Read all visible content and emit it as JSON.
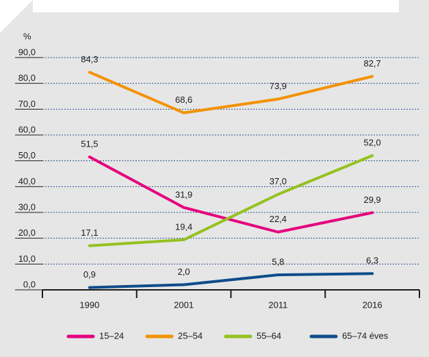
{
  "chart_data": {
    "type": "line",
    "y_label": "%",
    "categories": [
      "1990",
      "2001",
      "2011",
      "2016"
    ],
    "series": [
      {
        "name": "15–24",
        "color": "#e5007d",
        "values": [
          51.5,
          31.9,
          22.4,
          29.9
        ],
        "value_labels": [
          "51,5",
          "31,9",
          "22,4",
          "29,9"
        ]
      },
      {
        "name": "25–54",
        "color": "#f39200",
        "values": [
          84.3,
          68.6,
          73.9,
          82.7
        ],
        "value_labels": [
          "84,3",
          "68,6",
          "73,9",
          "82,7"
        ]
      },
      {
        "name": "55–64",
        "color": "#95c11f",
        "values": [
          17.1,
          19.4,
          37.0,
          52.0
        ],
        "value_labels": [
          "17,1",
          "19,4",
          "37,0",
          "52,0"
        ]
      },
      {
        "name": "65–74 éves",
        "color": "#0f4c8a",
        "values": [
          0.9,
          2.0,
          5.8,
          6.3
        ],
        "value_labels": [
          "0,9",
          "2,0",
          "5,8",
          "6,3"
        ]
      }
    ],
    "ylim": [
      0,
      90
    ],
    "yticks": [
      {
        "value": 0,
        "label": "0,0"
      },
      {
        "value": 10,
        "label": "10,0"
      },
      {
        "value": 20,
        "label": "20,0"
      },
      {
        "value": 30,
        "label": "30,0"
      },
      {
        "value": 40,
        "label": "40,0"
      },
      {
        "value": 50,
        "label": "50,0"
      },
      {
        "value": 60,
        "label": "60,0"
      },
      {
        "value": 70,
        "label": "70,0"
      },
      {
        "value": 80,
        "label": "80,0"
      },
      {
        "value": 90,
        "label": "90,0"
      }
    ],
    "grid": true,
    "legend": "bottom"
  }
}
